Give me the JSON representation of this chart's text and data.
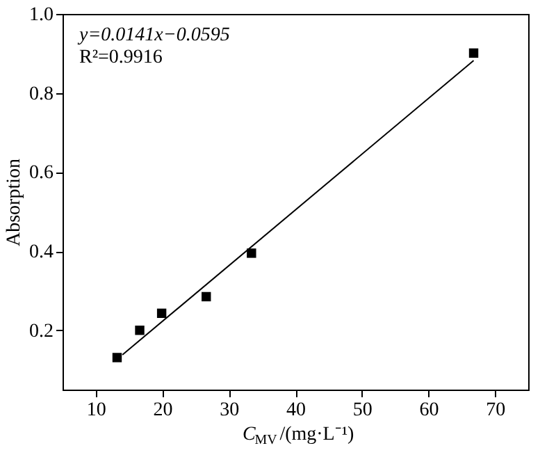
{
  "chart_data": {
    "type": "scatter",
    "xlabel": "C$_{MV}$/(mg·L⁻¹)",
    "ylabel": "Absorption",
    "annotations": [
      "y=0.0141x−0.0595",
      "R²=0.9916"
    ],
    "grid": false,
    "xlim": [
      5,
      75
    ],
    "xticks": [
      10,
      20,
      30,
      40,
      50,
      60,
      70
    ],
    "ylim": [
      0.05,
      1.0
    ],
    "yticks": [
      0.2,
      0.4,
      0.6,
      0.8,
      {
        "value": 1.0,
        "label": "1.0"
      }
    ],
    "series": [
      {
        "color": "#000000",
        "marker": "square",
        "x": [
          13.2,
          16.6,
          19.9,
          26.6,
          33.4,
          66.8
        ],
        "values": [
          0.131,
          0.2,
          0.243,
          0.285,
          0.395,
          0.901
        ]
      },
      {
        "type": "line",
        "marker": "none",
        "color": "#000000",
        "x": [
          14.0,
          66.8
        ],
        "values": [
          0.138,
          0.882
        ]
      }
    ]
  }
}
